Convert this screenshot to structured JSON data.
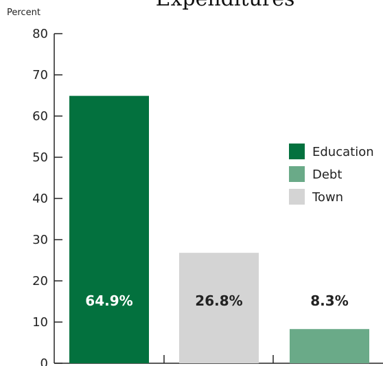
{
  "chart_data": {
    "type": "bar",
    "title": "Expenditures",
    "ylabel": "Percent",
    "xlabel": "",
    "ylim": [
      0,
      80
    ],
    "yticks": [
      0,
      10,
      20,
      30,
      40,
      50,
      60,
      70,
      80
    ],
    "grid": false,
    "legend_position": "right",
    "bars": [
      {
        "category": "Education",
        "value": 64.9,
        "label": "64.9%",
        "color": "#03713e",
        "label_color": "#ffffff"
      },
      {
        "category": "Town",
        "value": 26.8,
        "label": "26.8%",
        "color": "#d4d4d4",
        "label_color": "#222222"
      },
      {
        "category": "Debt",
        "value": 8.3,
        "label": "8.3%",
        "color": "#6aaa88",
        "label_color": "#222222"
      }
    ],
    "legend": [
      {
        "name": "Education",
        "color": "#03713e"
      },
      {
        "name": "Debt",
        "color": "#6aaa88"
      },
      {
        "name": "Town",
        "color": "#d4d4d4"
      }
    ]
  }
}
